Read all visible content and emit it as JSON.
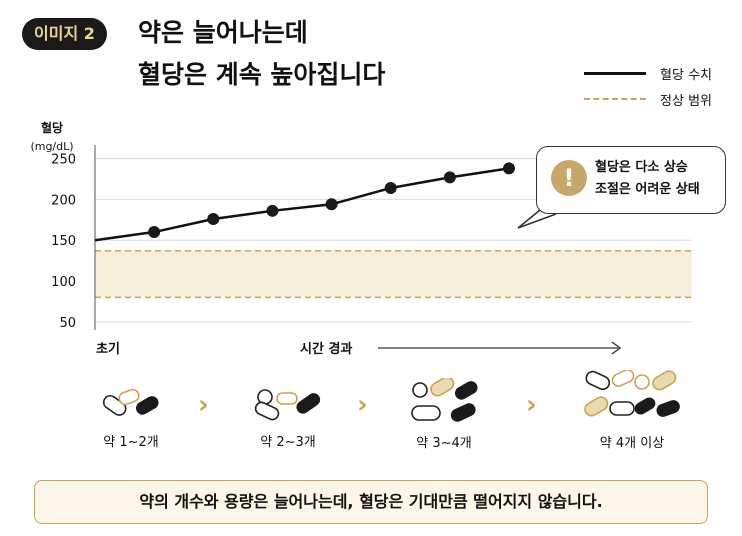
{
  "badge": "이미지 2",
  "title_line1": "약은 늘어나는데",
  "title_line2": "혈당은 계속 높아집니다",
  "legend": {
    "solid": "혈당 수치",
    "dashed": "정상 범위"
  },
  "callout": {
    "line1": "혈당은 다소 상승",
    "line2": "조절은 어려운 상태",
    "icon": "exclamation-icon"
  },
  "stages": [
    {
      "label": "약 1~2개"
    },
    {
      "label": "약 2~3개"
    },
    {
      "label": "약 3~4개"
    },
    {
      "label": "약 4개 이상"
    }
  ],
  "bottom_message": "약의 개수와 용량은 늘어나는데, 혈당은 기대만큼 떨어지지 않습니다.",
  "colors": {
    "accent": "#c9a550",
    "line": "#111111",
    "band": "#f7efdc"
  },
  "chart_data": {
    "type": "line",
    "ylabel_line1": "혈당",
    "ylabel_line2": "(mg/dL)",
    "xlabel_start": "초기",
    "xlabel_end": "시간 경과",
    "y_ticks": [
      250,
      200,
      150,
      100,
      50
    ],
    "ylim": [
      40,
      285
    ],
    "series": [
      {
        "name": "혈당 수치",
        "x": [
          0,
          1,
          2,
          3,
          4,
          5,
          6,
          7
        ],
        "values": [
          150,
          160,
          176,
          186,
          194,
          214,
          227,
          238
        ]
      }
    ],
    "marker_points": [
      1,
      2,
      3,
      4,
      5,
      6,
      7
    ],
    "normal_range": [
      80,
      137
    ]
  }
}
